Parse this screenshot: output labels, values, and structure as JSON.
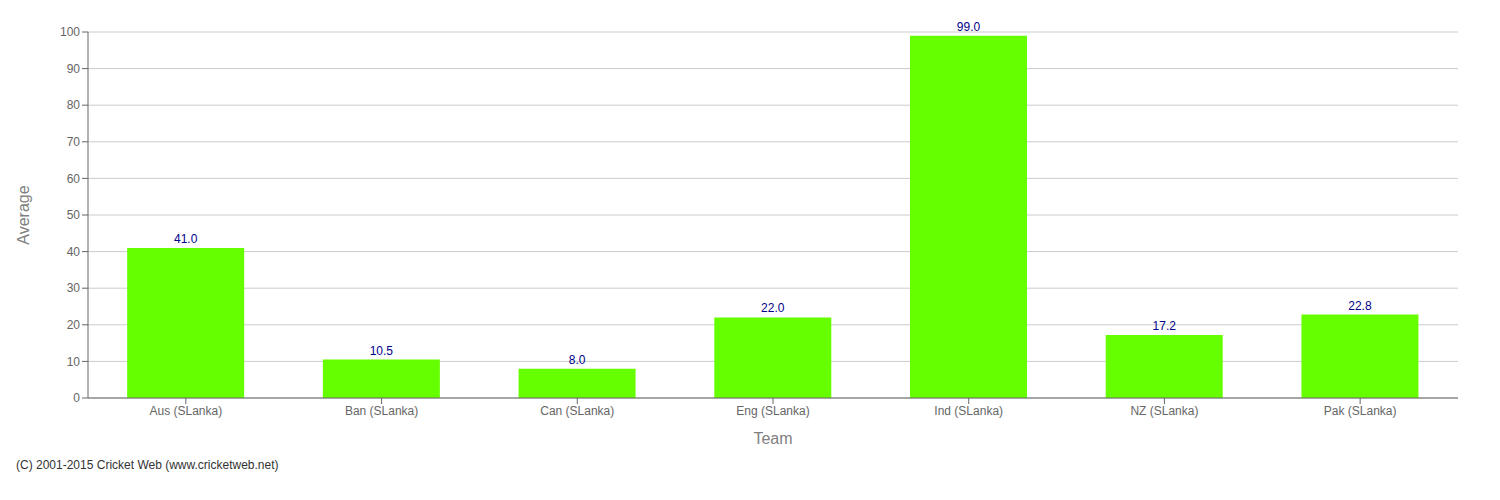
{
  "chart_data": {
    "type": "bar",
    "categories": [
      "Aus (SLanka)",
      "Ban (SLanka)",
      "Can (SLanka)",
      "Eng (SLanka)",
      "Ind (SLanka)",
      "NZ (SLanka)",
      "Pak (SLanka)"
    ],
    "values": [
      41.0,
      10.5,
      8.0,
      22.0,
      99.0,
      17.2,
      22.8
    ],
    "value_labels": [
      "41.0",
      "10.5",
      "8.0",
      "22.0",
      "99.0",
      "17.2",
      "22.8"
    ],
    "data_labels": true,
    "color": "#66ff00",
    "xlabel": "Team",
    "ylabel": "Average",
    "ylim": [
      0,
      100
    ],
    "yticks": [
      0,
      10,
      20,
      30,
      40,
      50,
      60,
      70,
      80,
      90,
      100
    ],
    "grid": true,
    "annotations": [
      "(C) 2001-2015 Cricket Web (www.cricketweb.net)"
    ]
  }
}
